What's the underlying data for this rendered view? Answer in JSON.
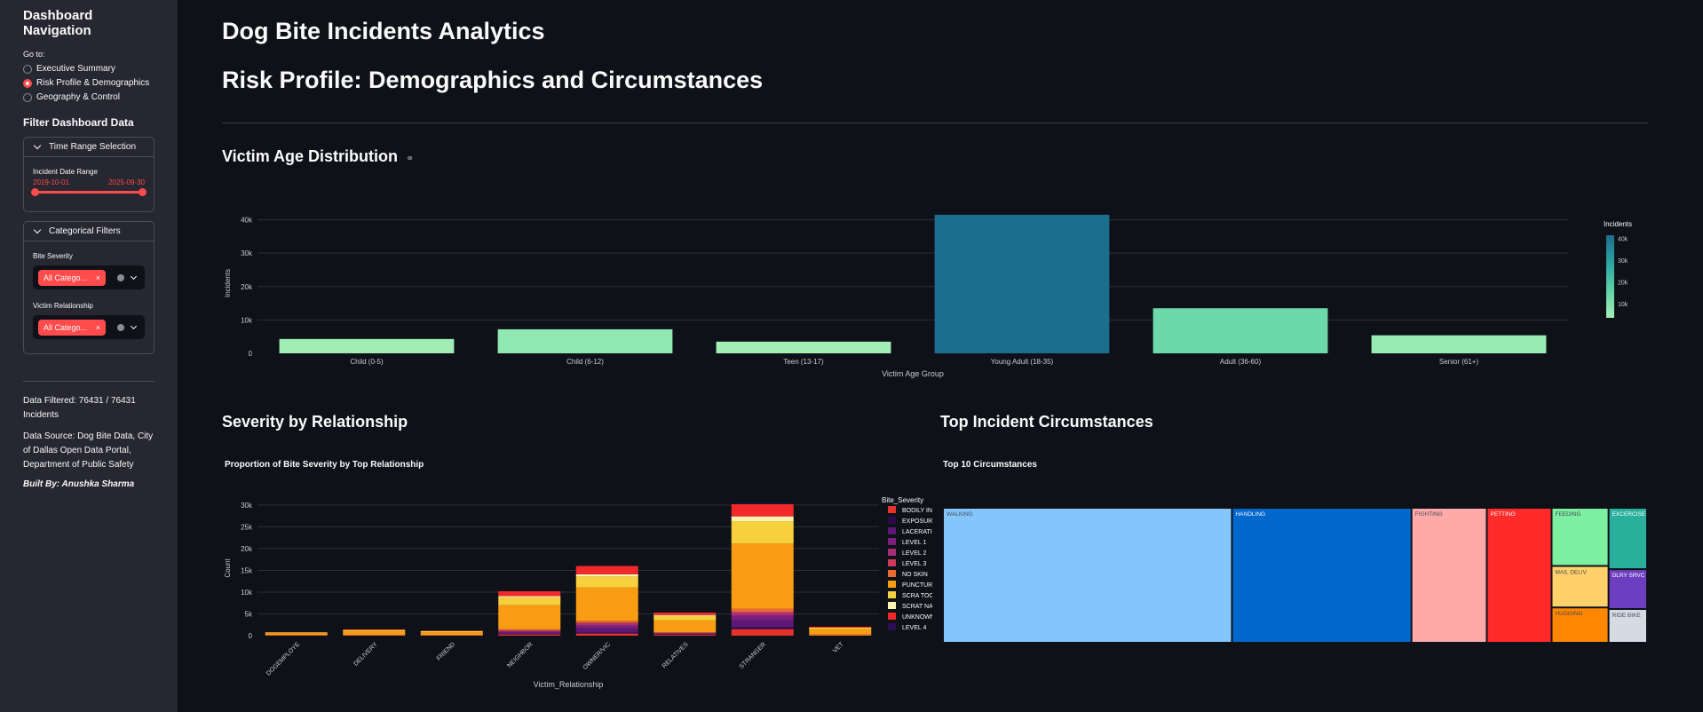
{
  "sidebar": {
    "title": "Dashboard Navigation",
    "goto_label": "Go to:",
    "pages": [
      {
        "label": "Executive Summary",
        "selected": false
      },
      {
        "label": "Risk Profile & Demographics",
        "selected": true
      },
      {
        "label": "Geography & Control",
        "selected": false
      }
    ],
    "filter_title": "Filter Dashboard Data",
    "time_range": {
      "header": "Time Range Selection",
      "field_label": "Incident Date Range",
      "start": "2019-10-01",
      "end": "2025-09-30"
    },
    "categorical": {
      "header": "Categorical Filters",
      "severity_label": "Bite Severity",
      "severity_tag": "All Catego...",
      "relationship_label": "Victim Relationship",
      "relationship_tag": "All Catego..."
    },
    "data_filtered": "Data Filtered: 76431 / 76431 Incidents",
    "data_source": "Data Source: Dog Bite Data, City of Dallas Open Data Portal, Department of Public Safety",
    "built_by": "Built By: Anushka Sharma"
  },
  "main": {
    "title": "Dog Bite Incidents Analytics",
    "subtitle": "Risk Profile: Demographics and Circumstances",
    "age_section_title": "Victim Age Distribution",
    "link_icon": "link-icon",
    "severity_section_title": "Severity by Relationship",
    "circumstances_section_title": "Top Incident Circumstances"
  },
  "chart_data": [
    {
      "type": "bar",
      "id": "age",
      "categories": [
        "Child (0-5)",
        "Child (6-12)",
        "Teen (13-17)",
        "Young Adult (18-35)",
        "Adult (36-60)",
        "Senior (61+)"
      ],
      "values": [
        4300,
        7200,
        3500,
        41500,
        13500,
        5400
      ],
      "xlabel": "Victim Age Group",
      "ylabel": "Incidents",
      "ylim": [
        0,
        42000
      ],
      "yticks": [
        0,
        10000,
        20000,
        30000,
        40000
      ],
      "ytick_labels": [
        "0",
        "10k",
        "20k",
        "30k",
        "40k"
      ],
      "colorbar": {
        "title": "Incidents",
        "labels": [
          "40k",
          "30k",
          "20k",
          "10k"
        ],
        "colors": [
          "#a3efb5",
          "#5ed2a6",
          "#2aa39f",
          "#1c6e8f"
        ]
      },
      "legend": "right",
      "grid": true
    },
    {
      "type": "bar",
      "id": "severity",
      "title": "Proportion of Bite Severity by Top Relationship",
      "xlabel": "Victim_Relationship",
      "ylabel": "Count",
      "ylim": [
        0,
        31000
      ],
      "yticks": [
        0,
        5000,
        10000,
        15000,
        20000,
        25000,
        30000
      ],
      "ytick_labels": [
        "0",
        "5k",
        "10k",
        "15k",
        "20k",
        "25k",
        "30k"
      ],
      "categories": [
        "DOGEMPLOYE",
        "DELIVERY",
        "FRIEND",
        "NEIGHBOR",
        "OWNER/VIC",
        "RELATIVES",
        "STRANGER",
        "VET"
      ],
      "legend_title": "Bite_Severity",
      "legend": "right",
      "grid": true,
      "series": [
        {
          "name": "BODILY INJ",
          "color": "#e6332a",
          "values": [
            0,
            0,
            0,
            300,
            500,
            200,
            1500,
            0
          ]
        },
        {
          "name": "EXPOSURE",
          "color": "#2d0a4e",
          "values": [
            0,
            0,
            0,
            100,
            200,
            50,
            400,
            0
          ]
        },
        {
          "name": "LACERATION",
          "color": "#5c1874",
          "values": [
            0,
            0,
            0,
            300,
            1000,
            150,
            1600,
            0
          ]
        },
        {
          "name": "LEVEL 1",
          "color": "#7a1f7e",
          "values": [
            0,
            0,
            0,
            200,
            600,
            100,
            1100,
            0
          ]
        },
        {
          "name": "LEVEL 2",
          "color": "#a52e76",
          "values": [
            0,
            0,
            0,
            200,
            400,
            100,
            600,
            0
          ]
        },
        {
          "name": "LEVEL 3",
          "color": "#cc3a5e",
          "values": [
            0,
            0,
            0,
            100,
            300,
            50,
            300,
            0
          ]
        },
        {
          "name": "NO SKIN",
          "color": "#ea6a32",
          "values": [
            150,
            200,
            200,
            300,
            400,
            100,
            700,
            250
          ]
        },
        {
          "name": "PUNCTURE",
          "color": "#f89d13",
          "values": [
            450,
            800,
            600,
            5500,
            7700,
            2800,
            15000,
            1300
          ]
        },
        {
          "name": "SCRA TOOTH",
          "color": "#f7d13d",
          "values": [
            150,
            300,
            250,
            1800,
            2500,
            1000,
            5100,
            300
          ]
        },
        {
          "name": "SCRAT NAIL",
          "color": "#fcf3b0",
          "values": [
            0,
            0,
            0,
            300,
            500,
            200,
            1100,
            0
          ]
        },
        {
          "name": "UNKNOWN",
          "color": "#f2282b",
          "values": [
            50,
            150,
            100,
            1100,
            1900,
            550,
            2800,
            200
          ]
        },
        {
          "name": "LEVEL 4",
          "color": "#2c1053",
          "values": [
            0,
            0,
            0,
            0,
            0,
            0,
            100,
            0
          ]
        }
      ]
    },
    {
      "type": "treemap",
      "id": "circumstances",
      "title": "Top 10 Circumstances",
      "items": [
        {
          "label": "WALKING",
          "value": 33000,
          "color": "#84c6fc"
        },
        {
          "label": "HANDLING",
          "value": 20500,
          "color": "#0067cd"
        },
        {
          "label": "FIGHTING",
          "value": 8600,
          "color": "#ffa9a9"
        },
        {
          "label": "PETTING",
          "value": 7400,
          "color": "#ff2b2b"
        },
        {
          "label": "FEEDING",
          "value": 2800,
          "color": "#7defa1"
        },
        {
          "label": "EXCERCISE",
          "value": 2000,
          "color": "#29b09d"
        },
        {
          "label": "MAIL DELIV",
          "value": 2000,
          "color": "#ffd16a"
        },
        {
          "label": "HUGGING",
          "value": 1700,
          "color": "#ff8700"
        },
        {
          "label": "DLRY SRVC",
          "value": 1300,
          "color": "#6d3fc0"
        },
        {
          "label": "RIDE BIKE",
          "value": 1100,
          "color": "#d5dae5"
        }
      ]
    }
  ]
}
